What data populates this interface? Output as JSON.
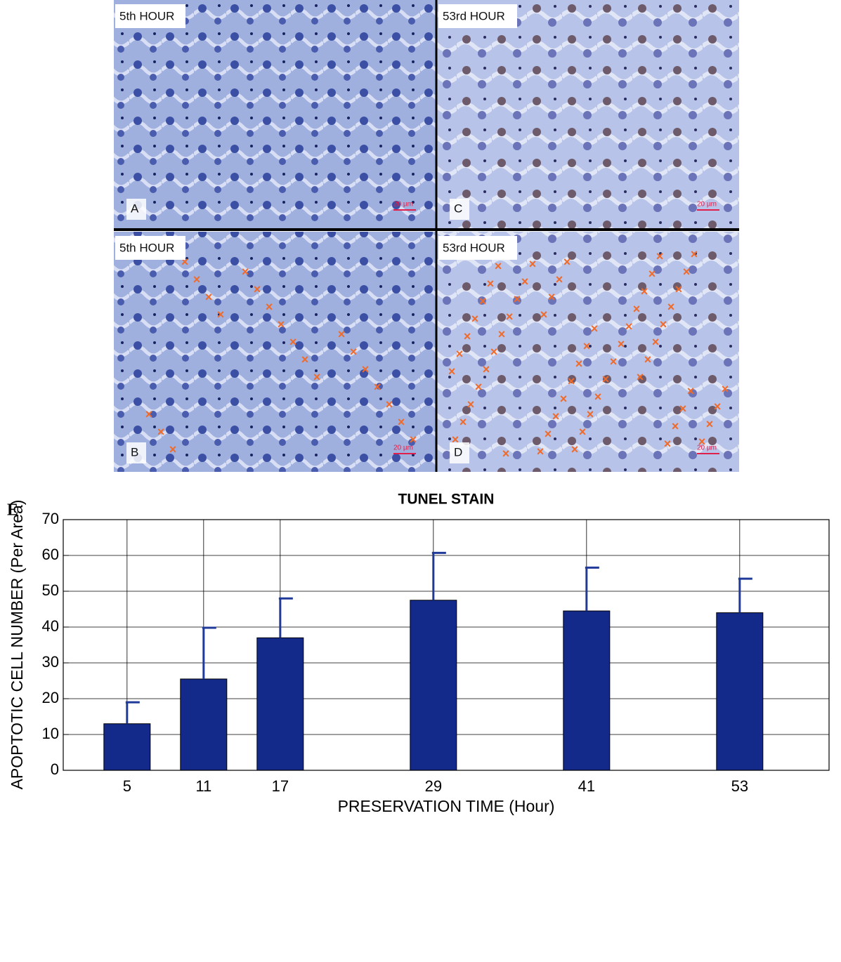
{
  "panels": [
    {
      "label": "A",
      "time": "5th HOUR",
      "scale": "20 µm"
    },
    {
      "label": "B",
      "time": "5th HOUR",
      "scale": "20 µm"
    },
    {
      "label": "C",
      "time": "53rd HOUR",
      "scale": "20 µm"
    },
    {
      "label": "D",
      "time": "53rd HOUR",
      "scale": "20 µm"
    }
  ],
  "chart_data": {
    "type": "bar",
    "panel_label": "E",
    "title": "TUNEL STAIN",
    "x_label": "PRESERVATION TIME (Hour)",
    "y_label": "APOPTOTIC CELL NUMBER (Per Area)",
    "x": [
      5,
      11,
      17,
      29,
      41,
      53
    ],
    "values": [
      13,
      25.5,
      37,
      47.5,
      44.5,
      44
    ],
    "errors": [
      6,
      14.3,
      11,
      13.2,
      12.1,
      9.5
    ],
    "color": "#142a8a",
    "error_color": "#1f3a99",
    "xlim": [
      0,
      60
    ],
    "xticks": [
      5,
      11,
      17,
      29,
      41,
      53
    ],
    "ylim": [
      0,
      70
    ],
    "yticks": [
      0,
      10,
      20,
      30,
      40,
      50,
      60,
      70
    ],
    "grid": true
  }
}
